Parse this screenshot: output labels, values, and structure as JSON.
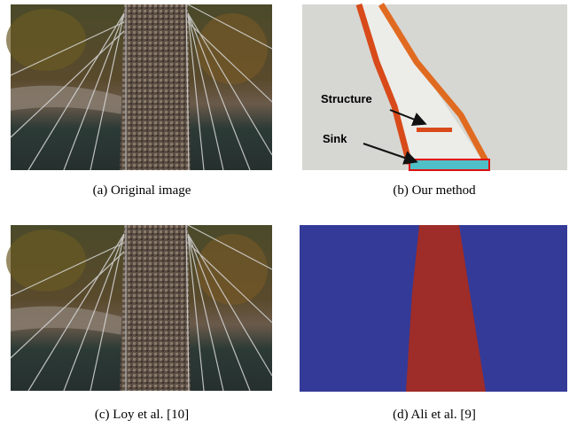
{
  "figures": [
    {
      "caption": "(a) Original image"
    },
    {
      "caption": "(b) Our method",
      "annotations": [
        "Structure",
        "Sink"
      ]
    },
    {
      "caption": "(c) Loy et al. [10]"
    },
    {
      "caption": "(d) Ali et al. [9]"
    }
  ]
}
